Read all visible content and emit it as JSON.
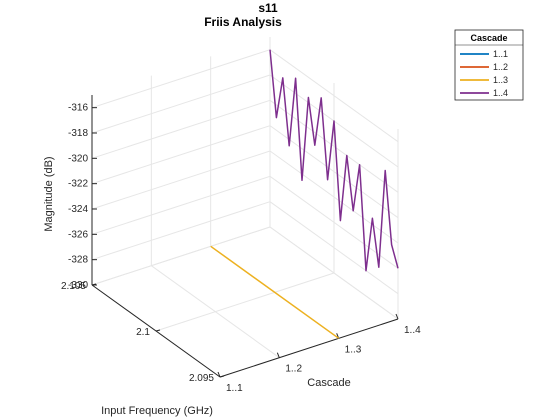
{
  "chart_data": {
    "type": "line",
    "title": "s11",
    "subtitle": "Friis Analysis",
    "xlabel": "Input Frequency (GHz)",
    "ylabel": "Cascade",
    "zlabel": "Magnitude (dB)",
    "xlim": [
      2.095,
      2.105
    ],
    "ylim": [
      1,
      4
    ],
    "zlim": [
      -330,
      -315
    ],
    "x_ticks": [
      "2.095",
      "2.1",
      "2.105"
    ],
    "y_ticks": [
      "1..1",
      "1..2",
      "1..3",
      "1..4"
    ],
    "z_ticks": [
      "-330",
      "-328",
      "-326",
      "-324",
      "-322",
      "-320",
      "-318",
      "-316"
    ],
    "grid": true,
    "legend": {
      "title": "Cascade",
      "placement": "top-right, outside",
      "entries": [
        "1..1",
        "1..2",
        "1..3",
        "1..4"
      ]
    },
    "series": [
      {
        "name": "1..3",
        "color": "#EDB120",
        "x": [
          2.105,
          2.095
        ],
        "y": [
          3,
          3
        ],
        "z": [
          -330,
          -330
        ]
      },
      {
        "name": "1..4",
        "color": "#7E2F8E",
        "x": [
          2.105,
          2.1045,
          2.104,
          2.1035,
          2.103,
          2.1025,
          2.102,
          2.1015,
          2.101,
          2.1005,
          2.1,
          2.0995,
          2.099,
          2.0985,
          2.098,
          2.0975,
          2.097,
          2.0965,
          2.096,
          2.0955,
          2.095
        ],
        "y": [
          4,
          4,
          4,
          4,
          4,
          4,
          4,
          4,
          4,
          4,
          4,
          4,
          4,
          4,
          4,
          4,
          4,
          4,
          4,
          4,
          4
        ],
        "z": [
          -316.0,
          -321.0,
          -317.5,
          -322.5,
          -316.8,
          -324.5,
          -317.6,
          -321.0,
          -316.9,
          -323.0,
          -318.0,
          -325.5,
          -320.0,
          -324.0,
          -320.0,
          -328.0,
          -323.5,
          -327.0,
          -319.0,
          -324.5,
          -326.0
        ]
      }
    ]
  },
  "colors": {
    "1..1": "#0072BD",
    "1..2": "#D95319",
    "1..3": "#EDB120",
    "1..4": "#7E2F8E",
    "axis": "#262626",
    "grid": "#e6e6e6"
  }
}
